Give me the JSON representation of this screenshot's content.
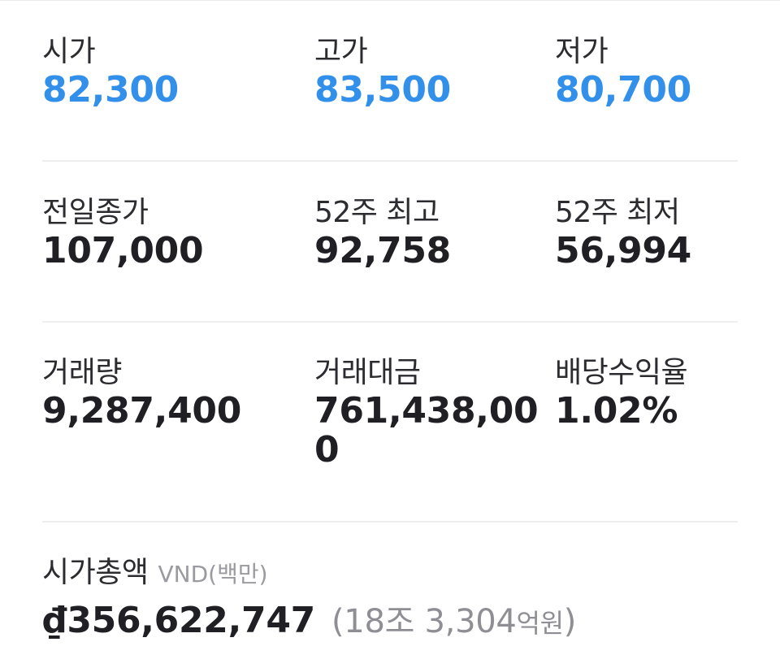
{
  "stats": {
    "open": {
      "label": "시가",
      "value": "82,300"
    },
    "high": {
      "label": "고가",
      "value": "83,500"
    },
    "low": {
      "label": "저가",
      "value": "80,700"
    },
    "prev_close": {
      "label": "전일종가",
      "value": "107,000"
    },
    "week52_high": {
      "label": "52주 최고",
      "value": "92,758"
    },
    "week52_low": {
      "label": "52주 최저",
      "value": "56,994"
    },
    "volume": {
      "label": "거래량",
      "value": "9,287,400"
    },
    "trade_value": {
      "label": "거래대금",
      "value": "761,438,000"
    },
    "dividend_yield": {
      "label": "배당수익율",
      "value": "1.02%"
    }
  },
  "market_cap": {
    "label": "시가총액",
    "unit": "VND(백만)",
    "value": "₫356,622,747",
    "converted_open": "(18조 3,304",
    "converted_unit": "억원",
    "converted_close": ")"
  },
  "colors": {
    "accent": "#3290ea",
    "text": "#1f1f24",
    "muted": "#8e8e94",
    "divider": "#eeeef1"
  }
}
